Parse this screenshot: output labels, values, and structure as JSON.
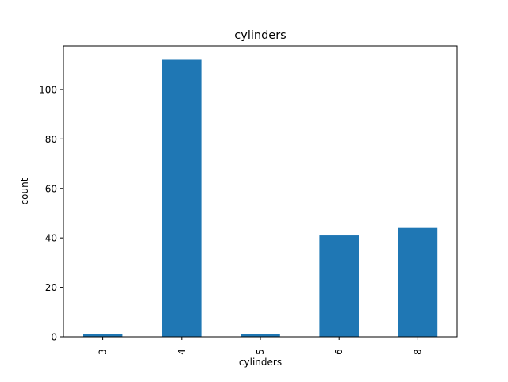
{
  "chart_data": {
    "type": "bar",
    "title": "cylinders",
    "xlabel": "cylinders",
    "ylabel": "count",
    "categories": [
      "3",
      "4",
      "5",
      "6",
      "8"
    ],
    "values": [
      1,
      112,
      1,
      41,
      44
    ],
    "ylim": [
      0,
      117.6
    ],
    "yticks": [
      0,
      20,
      40,
      60,
      80,
      100
    ],
    "grid": false,
    "legend": "none",
    "bar_color": "#1f77b4",
    "axis_color": "#000000"
  }
}
